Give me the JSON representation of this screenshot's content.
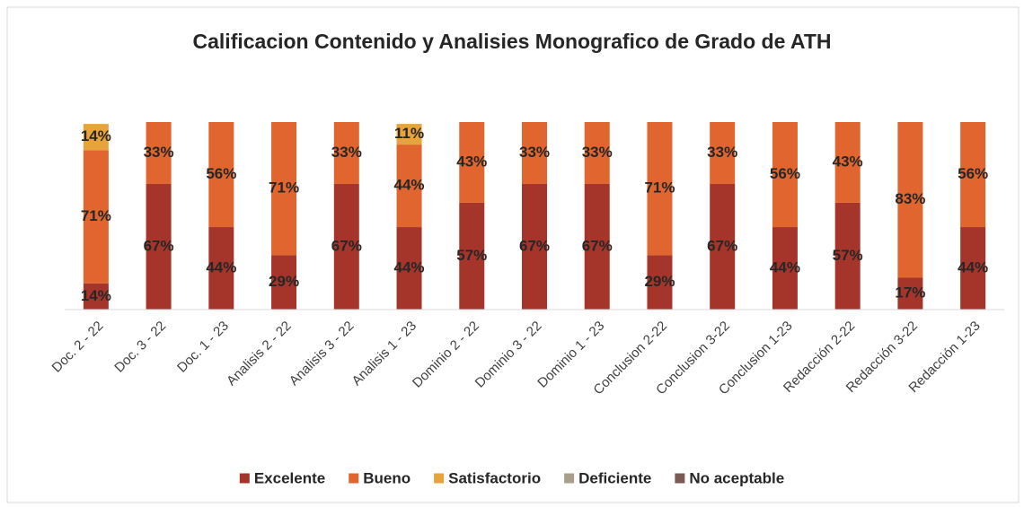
{
  "chart_data": {
    "type": "stacked_bar",
    "title": "Calificacion Contenido y Analisies Monografico de Grado de ATH",
    "categories": [
      "Doc. 2 - 22",
      "Doc. 3 - 22",
      "Doc. 1 - 23",
      "Analisis 2 - 22",
      "Analisis 3 - 22",
      "Analisis 1 - 23",
      "Dominio 2 - 22",
      "Dominio 3 - 22",
      "Dominio 1 - 23",
      "Conclusion 2-22",
      "Conclusion 3-22",
      "Conclusion 1-23",
      "Redacción 2-22",
      "Redacción 3-22",
      "Redacción 1-23"
    ],
    "series": [
      {
        "name": "Excelente",
        "color": "#a5352a",
        "values": [
          14,
          67,
          44,
          29,
          67,
          44,
          57,
          67,
          67,
          29,
          67,
          44,
          57,
          17,
          44
        ],
        "value_labels": [
          "14%",
          "67%",
          "44%",
          "29%",
          "67%",
          "44%",
          "57%",
          "67%",
          "67%",
          "29%",
          "67%",
          "44%",
          "57%",
          "17%",
          "44%"
        ]
      },
      {
        "name": "Bueno",
        "color": "#e0652f",
        "values": [
          71,
          33,
          56,
          71,
          33,
          44,
          43,
          33,
          33,
          71,
          33,
          56,
          43,
          83,
          56
        ],
        "value_labels": [
          "71%",
          "33%",
          "56%",
          "71%",
          "33%",
          "44%",
          "43%",
          "33%",
          "33%",
          "71%",
          "33%",
          "56%",
          "43%",
          "83%",
          "56%"
        ]
      },
      {
        "name": "Satisfactorio",
        "color": "#e8a33a",
        "values": [
          14,
          0,
          0,
          0,
          0,
          11,
          0,
          0,
          0,
          0,
          0,
          0,
          0,
          0,
          0
        ],
        "value_labels": [
          "14%",
          null,
          null,
          null,
          null,
          "11%",
          null,
          null,
          null,
          null,
          null,
          null,
          null,
          null,
          null
        ]
      },
      {
        "name": "Deficiente",
        "color": "#a89f8a",
        "values": [
          0,
          0,
          0,
          0,
          0,
          0,
          0,
          0,
          0,
          0,
          0,
          0,
          0,
          0,
          0
        ]
      },
      {
        "name": "No aceptable",
        "color": "#7a5a55",
        "values": [
          0,
          0,
          0,
          0,
          0,
          0,
          0,
          0,
          0,
          0,
          0,
          0,
          0,
          0,
          0
        ]
      }
    ],
    "ylim": [
      0,
      100
    ],
    "legend": "bottom"
  }
}
